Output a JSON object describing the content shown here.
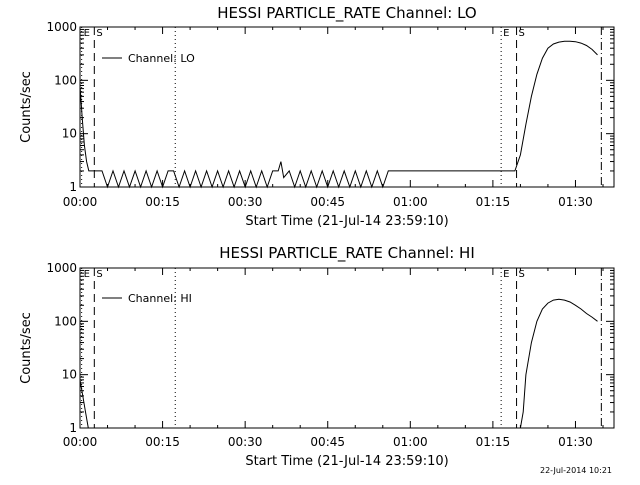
{
  "chart_data": [
    {
      "type": "line",
      "title": "HESSI PARTICLE_RATE Channel: LO",
      "xlabel": "Start Time (21-Jul-14 23:59:10)",
      "ylabel": "Counts/sec",
      "yscale": "log",
      "ylim": [
        1,
        1000
      ],
      "xlim_minutes": [
        0,
        97
      ],
      "x_tick_labels": [
        "00:00",
        "00:15",
        "00:30",
        "00:45",
        "01:00",
        "01:15",
        "01:30"
      ],
      "y_tick_labels": [
        "1",
        "10",
        "100",
        "1000"
      ],
      "legend": "Channel: LO",
      "legend_position": "top-left",
      "markers": [
        {
          "label": "E",
          "minute": 0.3,
          "style": "dotted"
        },
        {
          "label": "S",
          "minute": 2.6,
          "style": "dashed"
        },
        {
          "label": "",
          "minute": 17.3,
          "style": "dotted"
        },
        {
          "label": "E",
          "minute": 76.5,
          "style": "dotted"
        },
        {
          "label": "S",
          "minute": 79.3,
          "style": "dashed"
        },
        {
          "label": "",
          "minute": 94.7,
          "style": "dash-dot"
        }
      ],
      "series": [
        {
          "x": [
            0,
            0.4,
            0.8,
            1.2,
            1.6,
            2.0,
            3,
            4,
            5,
            6,
            7,
            8,
            9,
            10,
            11,
            12,
            13,
            14,
            15,
            16,
            17,
            18,
            19,
            20,
            21,
            22,
            23,
            24,
            25,
            26,
            27,
            28,
            29,
            30,
            31,
            32,
            33,
            34,
            35,
            36,
            36.5,
            37,
            38,
            39,
            40,
            41,
            42,
            43,
            44,
            45,
            46,
            47,
            48,
            49,
            50,
            51,
            52,
            53,
            54,
            55,
            56,
            57,
            58,
            59,
            60,
            61,
            62,
            63,
            64,
            65,
            66,
            67,
            68,
            69,
            70,
            71,
            72,
            73,
            74,
            75,
            76,
            77,
            78,
            79,
            80,
            81,
            82,
            83,
            84,
            85,
            86,
            87,
            88,
            89,
            90,
            91,
            92,
            93,
            94
          ],
          "y": [
            80,
            20,
            6,
            3,
            2,
            2,
            2,
            2,
            1,
            2,
            1,
            2,
            1,
            2,
            1,
            2,
            1,
            2,
            1,
            2,
            2,
            1,
            2,
            1,
            2,
            1,
            2,
            1,
            2,
            1,
            2,
            1,
            2,
            1,
            2,
            1,
            2,
            1,
            2,
            2,
            3,
            1.5,
            2,
            1,
            2,
            1,
            2,
            1,
            2,
            1,
            2,
            1,
            2,
            1,
            2,
            1,
            2,
            1,
            2,
            1,
            2,
            2,
            2,
            2,
            2,
            2,
            2,
            2,
            2,
            2,
            2,
            2,
            2,
            2,
            2,
            2,
            2,
            2,
            2,
            2,
            2,
            2,
            2,
            2,
            4,
            15,
            50,
            130,
            260,
            400,
            480,
            520,
            540,
            540,
            530,
            500,
            450,
            380,
            300
          ]
        }
      ]
    },
    {
      "type": "line",
      "title": "HESSI PARTICLE_RATE Channel: HI",
      "xlabel": "Start Time (21-Jul-14 23:59:10)",
      "ylabel": "Counts/sec",
      "yscale": "log",
      "ylim": [
        1,
        1000
      ],
      "xlim_minutes": [
        0,
        97
      ],
      "x_tick_labels": [
        "00:00",
        "00:15",
        "00:30",
        "00:45",
        "01:00",
        "01:15",
        "01:30"
      ],
      "y_tick_labels": [
        "1",
        "10",
        "100",
        "1000"
      ],
      "legend": "Channel: HI",
      "legend_position": "top-left",
      "markers": [
        {
          "label": "E",
          "minute": 0.3,
          "style": "dotted"
        },
        {
          "label": "S",
          "minute": 2.6,
          "style": "dashed"
        },
        {
          "label": "",
          "minute": 17.3,
          "style": "dotted"
        },
        {
          "label": "E",
          "minute": 76.5,
          "style": "dotted"
        },
        {
          "label": "S",
          "minute": 79.3,
          "style": "dashed"
        },
        {
          "label": "",
          "minute": 94.7,
          "style": "dash-dot"
        }
      ],
      "series": [
        {
          "x": [
            0,
            0.5,
            1.0,
            1.5,
            80,
            80.5,
            81,
            82,
            83,
            84,
            85,
            86,
            87,
            88,
            89,
            90,
            91,
            92,
            93,
            94
          ],
          "y": [
            8,
            4,
            2,
            1,
            1,
            2,
            10,
            40,
            100,
            170,
            220,
            250,
            260,
            250,
            230,
            200,
            170,
            140,
            120,
            100
          ]
        }
      ]
    }
  ],
  "footer": {
    "stamp": "22-Jul-2014 10:21"
  }
}
